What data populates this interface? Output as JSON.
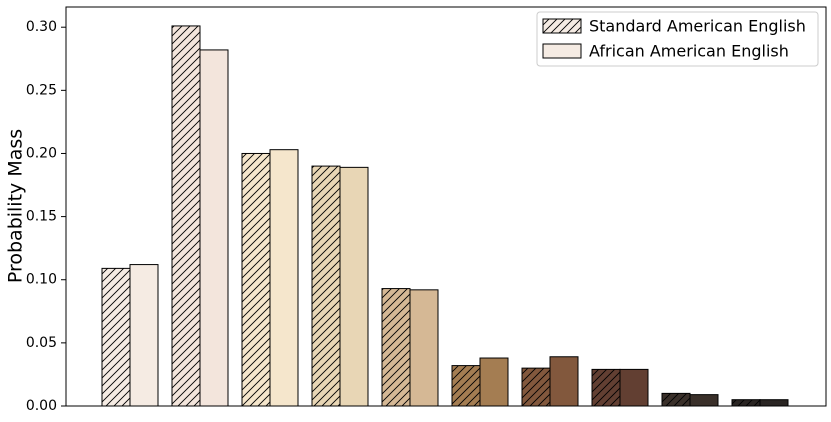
{
  "chart_data": {
    "type": "bar",
    "ylabel": "Probability Mass",
    "categories": [
      null,
      null,
      null,
      null,
      null,
      null,
      null,
      null,
      null,
      null
    ],
    "colors": [
      "#f5ebe3",
      "#f3e5dc",
      "#f5e6cc",
      "#e8d6b5",
      "#d5b895",
      "#a47d52",
      "#82583d",
      "#623f32",
      "#3a302a",
      "#2a2523"
    ],
    "series": [
      {
        "name": "Standard American English",
        "color": "#f5ebe3",
        "hatch": true,
        "values": [
          0.109,
          0.301,
          0.2,
          0.19,
          0.093,
          0.032,
          0.03,
          0.029,
          0.01,
          0.005
        ]
      },
      {
        "name": "African American English",
        "color": "#f5ebe3",
        "hatch": false,
        "values": [
          0.112,
          0.282,
          0.203,
          0.189,
          0.092,
          0.038,
          0.039,
          0.029,
          0.009,
          0.005
        ]
      }
    ],
    "ylim": [
      0,
      0.316
    ],
    "yticks": [
      {
        "value": 0,
        "label": "0.00"
      },
      {
        "value": 0.05,
        "label": "0.05"
      },
      {
        "value": 0.1,
        "label": "0.10"
      },
      {
        "value": 0.15,
        "label": "0.15"
      },
      {
        "value": 0.2,
        "label": "0.20"
      },
      {
        "value": 0.25,
        "label": "0.25"
      },
      {
        "value": 0.3,
        "label": "0.30"
      }
    ],
    "legend": "upper right",
    "grid": false
  }
}
